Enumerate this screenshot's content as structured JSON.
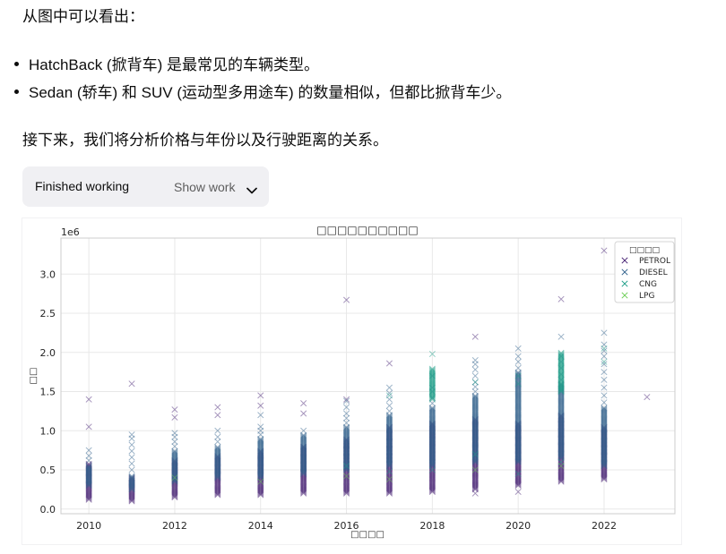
{
  "intro": "从图中可以看出：",
  "bullets": [
    "HatchBack (掀背车) 是最常见的车辆类型。",
    "Sedan (轿车) 和 SUV (运动型多用途车) 的数量相似，但都比掀背车少。"
  ],
  "next": "接下来，我们将分析价格与年份以及行驶距离的关系。",
  "work_status": {
    "label": "Finished working",
    "toggle": "Show work",
    "icon": "chevron-down-icon"
  },
  "chart_data": {
    "type": "scatter",
    "title": "□□□□□□□□□□",
    "xlabel": "□□□□",
    "ylabel": "□□",
    "y_offset_label": "1e6",
    "xlim": [
      2009.35,
      2023.65
    ],
    "ylim": [
      -0.06,
      3.46
    ],
    "x_ticks": [
      2010,
      2012,
      2014,
      2016,
      2018,
      2020,
      2022
    ],
    "x_tick_labels": [
      "2010",
      "2012",
      "2014",
      "2016",
      "2018",
      "2020",
      "2022"
    ],
    "y_ticks": [
      0,
      0.5,
      1.0,
      1.5,
      2.0,
      2.5,
      3.0
    ],
    "y_tick_labels": [
      "0.0",
      "0.5",
      "1.0",
      "1.5",
      "2.0",
      "2.5",
      "3.0"
    ],
    "grid": true,
    "marker": "x",
    "legend": {
      "title": "□□□□",
      "placement": "top-right"
    },
    "series": [
      {
        "name": "PETROL",
        "color": "#482475",
        "columns": [
          {
            "x": 2010,
            "y_min": 0.12,
            "y_max": 0.58
          },
          {
            "x": 2011,
            "y_min": 0.1,
            "y_max": 0.4
          },
          {
            "x": 2012,
            "y_min": 0.15,
            "y_max": 0.62
          },
          {
            "x": 2013,
            "y_min": 0.18,
            "y_max": 0.68
          },
          {
            "x": 2014,
            "y_min": 0.18,
            "y_max": 0.75
          },
          {
            "x": 2015,
            "y_min": 0.2,
            "y_max": 0.8
          },
          {
            "x": 2016,
            "y_min": 0.2,
            "y_max": 0.9
          },
          {
            "x": 2017,
            "y_min": 0.2,
            "y_max": 1.05
          },
          {
            "x": 2018,
            "y_min": 0.22,
            "y_max": 1.1
          },
          {
            "x": 2019,
            "y_min": 0.25,
            "y_max": 1.15
          },
          {
            "x": 2020,
            "y_min": 0.3,
            "y_max": 1.1
          },
          {
            "x": 2021,
            "y_min": 0.35,
            "y_max": 1.2
          },
          {
            "x": 2022,
            "y_min": 0.38,
            "y_max": 1.05
          }
        ],
        "points": [
          [
            2010,
            1.05
          ],
          [
            2010,
            1.4
          ],
          [
            2011,
            1.6
          ],
          [
            2012,
            1.17
          ],
          [
            2012,
            1.27
          ],
          [
            2013,
            1.2
          ],
          [
            2013,
            1.3
          ],
          [
            2014,
            1.32
          ],
          [
            2014,
            1.45
          ],
          [
            2015,
            1.22
          ],
          [
            2015,
            1.35
          ],
          [
            2016,
            1.4
          ],
          [
            2016,
            2.67
          ],
          [
            2017,
            1.86
          ],
          [
            2019,
            0.2
          ],
          [
            2019,
            2.2
          ],
          [
            2020,
            0.22
          ],
          [
            2021,
            2.68
          ],
          [
            2022,
            3.3
          ],
          [
            2023,
            1.43
          ]
        ]
      },
      {
        "name": "DIESEL",
        "color": "#33638d",
        "columns": [
          {
            "x": 2010,
            "y_min": 0.3,
            "y_max": 0.55
          },
          {
            "x": 2011,
            "y_min": 0.25,
            "y_max": 0.42
          },
          {
            "x": 2012,
            "y_min": 0.35,
            "y_max": 0.75
          },
          {
            "x": 2013,
            "y_min": 0.4,
            "y_max": 0.8
          },
          {
            "x": 2014,
            "y_min": 0.4,
            "y_max": 0.9
          },
          {
            "x": 2015,
            "y_min": 0.45,
            "y_max": 0.95
          },
          {
            "x": 2016,
            "y_min": 0.5,
            "y_max": 1.05
          },
          {
            "x": 2017,
            "y_min": 0.55,
            "y_max": 1.2
          },
          {
            "x": 2018,
            "y_min": 0.55,
            "y_max": 1.3
          },
          {
            "x": 2019,
            "y_min": 0.6,
            "y_max": 1.45
          },
          {
            "x": 2020,
            "y_min": 0.6,
            "y_max": 1.75
          },
          {
            "x": 2021,
            "y_min": 0.65,
            "y_max": 1.6
          },
          {
            "x": 2022,
            "y_min": 0.55,
            "y_max": 1.3
          }
        ],
        "points": [
          [
            2010,
            0.62
          ],
          [
            2010,
            0.68
          ],
          [
            2010,
            0.75
          ],
          [
            2011,
            0.5
          ],
          [
            2011,
            0.58
          ],
          [
            2011,
            0.66
          ],
          [
            2011,
            0.74
          ],
          [
            2011,
            0.82
          ],
          [
            2011,
            0.9
          ],
          [
            2011,
            0.95
          ],
          [
            2012,
            0.8
          ],
          [
            2012,
            0.86
          ],
          [
            2012,
            0.92
          ],
          [
            2012,
            0.97
          ],
          [
            2013,
            0.86
          ],
          [
            2013,
            0.92
          ],
          [
            2013,
            1.0
          ],
          [
            2014,
            0.95
          ],
          [
            2014,
            1.0
          ],
          [
            2014,
            1.05
          ],
          [
            2014,
            1.2
          ],
          [
            2015,
            1.0
          ],
          [
            2016,
            1.1
          ],
          [
            2016,
            1.16
          ],
          [
            2016,
            1.22
          ],
          [
            2016,
            1.3
          ],
          [
            2016,
            1.38
          ],
          [
            2017,
            1.25
          ],
          [
            2017,
            1.32
          ],
          [
            2017,
            1.4
          ],
          [
            2017,
            1.48
          ],
          [
            2017,
            1.55
          ],
          [
            2018,
            1.35
          ],
          [
            2018,
            1.42
          ],
          [
            2018,
            1.5
          ],
          [
            2018,
            1.55
          ],
          [
            2018,
            1.7
          ],
          [
            2019,
            1.5
          ],
          [
            2019,
            1.56
          ],
          [
            2019,
            1.62
          ],
          [
            2019,
            1.7
          ],
          [
            2019,
            1.78
          ],
          [
            2019,
            1.85
          ],
          [
            2019,
            1.9
          ],
          [
            2020,
            1.8
          ],
          [
            2020,
            1.88
          ],
          [
            2020,
            1.95
          ],
          [
            2020,
            2.05
          ],
          [
            2021,
            1.65
          ],
          [
            2021,
            1.72
          ],
          [
            2021,
            1.8
          ],
          [
            2021,
            1.88
          ],
          [
            2021,
            1.95
          ],
          [
            2021,
            2.2
          ],
          [
            2022,
            1.36
          ],
          [
            2022,
            1.45
          ],
          [
            2022,
            1.55
          ],
          [
            2022,
            1.65
          ],
          [
            2022,
            1.75
          ],
          [
            2022,
            1.85
          ],
          [
            2022,
            1.95
          ],
          [
            2022,
            2.02
          ],
          [
            2022,
            2.1
          ],
          [
            2022,
            2.25
          ]
        ]
      },
      {
        "name": "CNG",
        "color": "#1f9e89",
        "columns": [
          {
            "x": 2018,
            "y_min": 1.4,
            "y_max": 1.8
          },
          {
            "x": 2021,
            "y_min": 1.5,
            "y_max": 2.0
          }
        ],
        "points": [
          [
            2016,
            0.55
          ],
          [
            2017,
            0.48
          ],
          [
            2017,
            1.45
          ],
          [
            2018,
            0.5
          ],
          [
            2018,
            1.98
          ],
          [
            2019,
            0.7
          ],
          [
            2019,
            1.62
          ],
          [
            2020,
            0.45
          ],
          [
            2020,
            1.6
          ],
          [
            2020,
            1.7
          ],
          [
            2021,
            0.6
          ],
          [
            2022,
            1.88
          ],
          [
            2022,
            2.05
          ]
        ]
      },
      {
        "name": "LPG",
        "color": "#6ece58",
        "columns": [],
        "points": [
          [
            2012,
            0.4
          ],
          [
            2014,
            0.35
          ],
          [
            2016,
            0.42
          ],
          [
            2017,
            0.38
          ],
          [
            2019,
            0.5
          ],
          [
            2021,
            0.55
          ]
        ]
      }
    ]
  }
}
